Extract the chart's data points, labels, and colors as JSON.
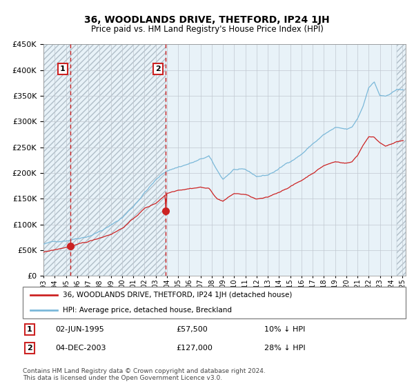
{
  "title": "36, WOODLANDS DRIVE, THETFORD, IP24 1JH",
  "subtitle": "Price paid vs. HM Land Registry's House Price Index (HPI)",
  "legend_line1": "36, WOODLANDS DRIVE, THETFORD, IP24 1JH (detached house)",
  "legend_line2": "HPI: Average price, detached house, Breckland",
  "purchase1_date": "02-JUN-1995",
  "purchase1_price": "£57,500",
  "purchase1_hpi": "10% ↓ HPI",
  "purchase2_date": "04-DEC-2003",
  "purchase2_price": "£127,000",
  "purchase2_hpi": "28% ↓ HPI",
  "footnote": "Contains HM Land Registry data © Crown copyright and database right 2024.\nThis data is licensed under the Open Government Licence v3.0.",
  "hpi_color": "#7ab8d9",
  "house_color": "#cc2222",
  "marker_color": "#cc2222",
  "vline_color": "#cc2222",
  "bg_color": "#e8f2f8",
  "grid_color": "#c0c8d0",
  "hatch_color": "#b0bec8",
  "ylim": [
    0,
    450000
  ],
  "xlim_start": 1993.0,
  "xlim_end": 2025.3,
  "purchase1_x": 1995.417,
  "purchase2_x": 2003.917,
  "hpi_keypoints_x": [
    1993.0,
    1994.0,
    1995.0,
    1996.0,
    1997.0,
    1998.0,
    1999.0,
    2000.0,
    2001.0,
    2002.0,
    2003.0,
    2004.0,
    2005.0,
    2006.0,
    2007.0,
    2007.75,
    2008.5,
    2009.0,
    2009.5,
    2010.0,
    2011.0,
    2012.0,
    2013.0,
    2014.0,
    2015.0,
    2016.0,
    2017.0,
    2018.0,
    2019.0,
    2020.0,
    2020.5,
    2021.0,
    2021.5,
    2022.0,
    2022.5,
    2023.0,
    2023.5,
    2024.0,
    2024.5,
    2025.0
  ],
  "hpi_keypoints_y": [
    62000,
    66000,
    70000,
    76000,
    82000,
    92000,
    103000,
    118000,
    140000,
    168000,
    192000,
    210000,
    218000,
    225000,
    232000,
    238000,
    208000,
    192000,
    202000,
    212000,
    208000,
    195000,
    198000,
    210000,
    225000,
    240000,
    260000,
    278000,
    290000,
    285000,
    288000,
    305000,
    330000,
    368000,
    378000,
    352000,
    350000,
    355000,
    360000,
    362000
  ],
  "house_keypoints_x": [
    1993.0,
    1994.0,
    1995.0,
    1996.0,
    1997.0,
    1998.0,
    1999.0,
    2000.0,
    2001.0,
    2002.0,
    2003.0,
    2004.0,
    2005.0,
    2006.0,
    2007.0,
    2007.75,
    2008.5,
    2009.0,
    2009.5,
    2010.0,
    2011.0,
    2012.0,
    2013.0,
    2014.0,
    2015.0,
    2016.0,
    2017.0,
    2018.0,
    2019.0,
    2020.0,
    2020.5,
    2021.0,
    2021.5,
    2022.0,
    2022.5,
    2023.0,
    2023.5,
    2024.0,
    2024.5,
    2025.0
  ],
  "house_keypoints_y": [
    46000,
    50000,
    55000,
    59000,
    64000,
    72000,
    80000,
    92000,
    110000,
    130000,
    140000,
    160000,
    168000,
    172000,
    175000,
    172000,
    152000,
    148000,
    155000,
    162000,
    160000,
    150000,
    152000,
    162000,
    174000,
    185000,
    200000,
    215000,
    222000,
    220000,
    222000,
    235000,
    255000,
    272000,
    270000,
    260000,
    255000,
    258000,
    262000,
    263000
  ],
  "title_fontsize": 10,
  "subtitle_fontsize": 8.5,
  "tick_fontsize": 7,
  "ylabel_fontsize": 8,
  "legend_fontsize": 7.5,
  "ann_fontsize": 8,
  "footnote_fontsize": 6.5
}
